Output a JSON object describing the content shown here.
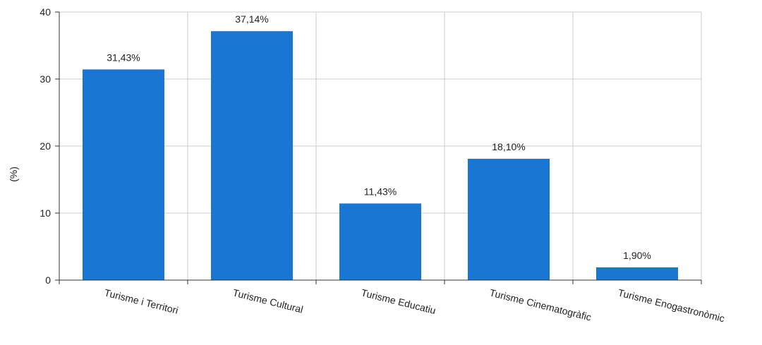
{
  "chart_data": {
    "type": "bar",
    "categories": [
      "Turisme i Territori",
      "Turisme Cultural",
      "Turisme Educatiu",
      "Turisme Cinematogràfic",
      "Turisme Enogastronòmic"
    ],
    "values": [
      31.43,
      37.14,
      11.43,
      18.1,
      1.9
    ],
    "data_labels": [
      "31,43%",
      "37,14%",
      "11,43%",
      "18,10%",
      "1,90%"
    ],
    "title": "",
    "xlabel": "",
    "ylabel": "(%)",
    "ylim": [
      0,
      40
    ],
    "yticks": [
      0,
      10,
      20,
      30,
      40
    ],
    "grid": true,
    "legend": "none",
    "bar_color": "#1976D2",
    "grid_color": "#cccccc"
  }
}
